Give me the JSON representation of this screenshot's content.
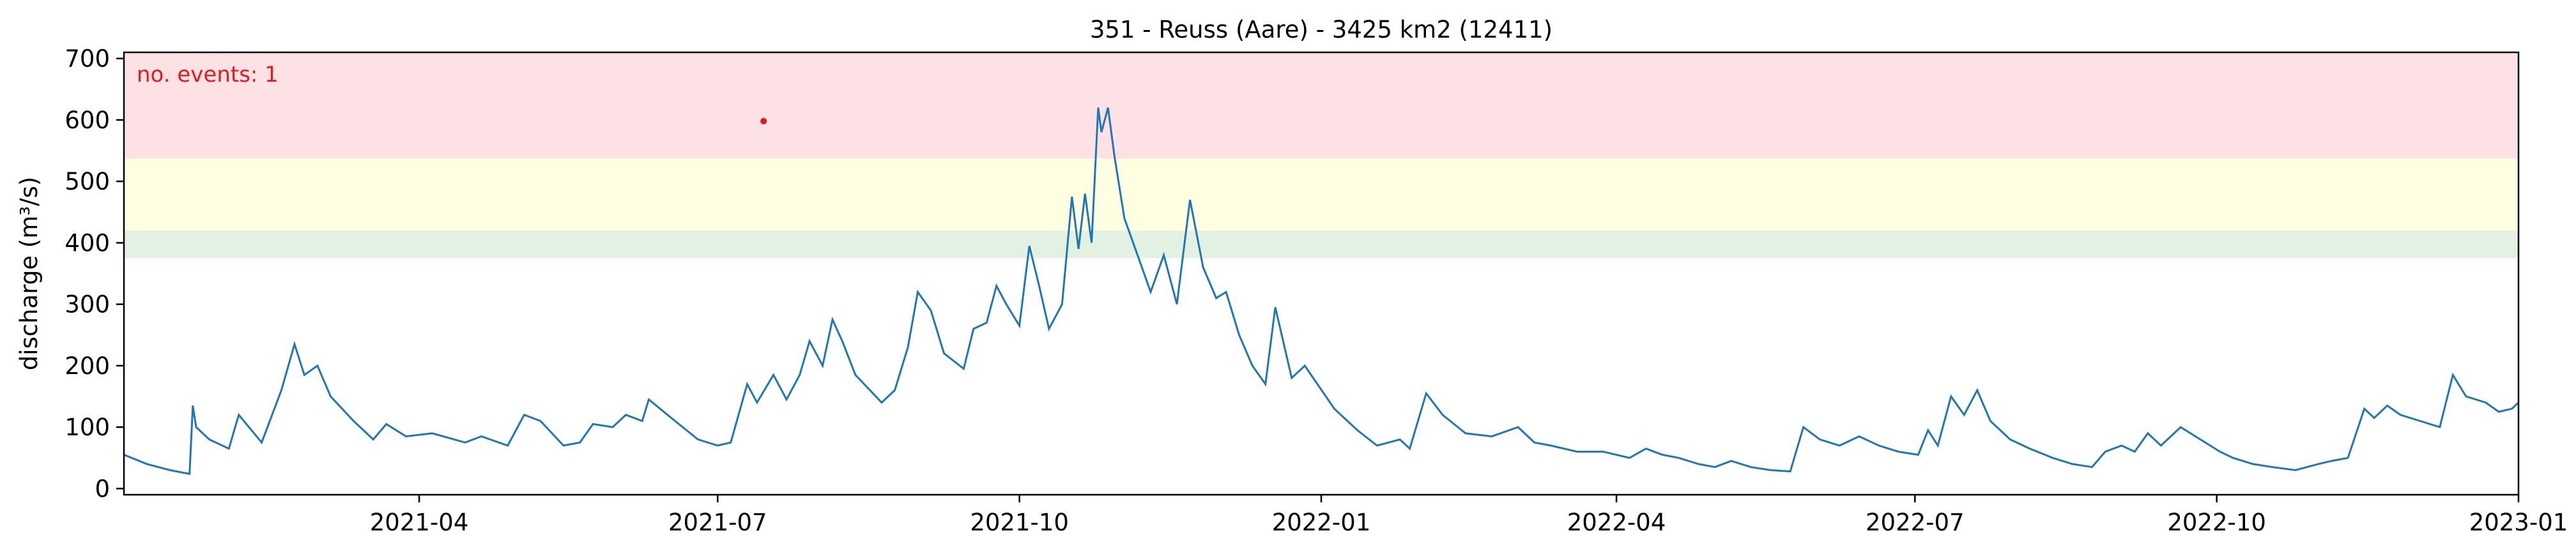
{
  "chart_data": {
    "type": "line",
    "title": "351 - Reuss (Aare) - 3425 km2 (12411)",
    "xlabel": "",
    "ylabel": "discharge (m³/s)",
    "xlim": [
      "2021-01-01",
      "2023-01-01"
    ],
    "ylim": [
      -10,
      710
    ],
    "x_ticks": [
      "2021-04",
      "2021-07",
      "2021-10",
      "2022-01",
      "2022-04",
      "2022-07",
      "2022-10",
      "2023-01"
    ],
    "x_tick_dates": [
      "2021-04-01",
      "2021-07-01",
      "2021-10-01",
      "2022-01-01",
      "2022-04-01",
      "2022-07-01",
      "2022-10-01",
      "2023-01-01"
    ],
    "y_ticks": [
      0,
      100,
      200,
      300,
      400,
      500,
      600,
      700
    ],
    "y_tick_labels": [
      "0",
      "100",
      "200",
      "300",
      "400",
      "500",
      "600",
      "700"
    ],
    "threshold_bands": [
      {
        "from": 375,
        "to": 420,
        "color": "#e3f1e3"
      },
      {
        "from": 537,
        "to": 710,
        "color": "#fde1e4"
      },
      {
        "from": 420,
        "to": 537,
        "color": "#fefee1"
      }
    ],
    "annotation": "no. events: 1",
    "annotation_color": "#e41a1c",
    "event_points": [
      {
        "x": "2021-07-15",
        "y": 598
      }
    ],
    "series": [
      {
        "name": "discharge",
        "color": "#1f77b4",
        "points": [
          [
            "2021-01-01",
            55
          ],
          [
            "2021-01-08",
            40
          ],
          [
            "2021-01-15",
            30
          ],
          [
            "2021-01-21",
            24
          ],
          [
            "2021-01-22",
            135
          ],
          [
            "2021-01-23",
            100
          ],
          [
            "2021-01-27",
            80
          ],
          [
            "2021-02-02",
            65
          ],
          [
            "2021-02-05",
            120
          ],
          [
            "2021-02-12",
            75
          ],
          [
            "2021-02-18",
            160
          ],
          [
            "2021-02-22",
            235
          ],
          [
            "2021-02-25",
            185
          ],
          [
            "2021-03-01",
            200
          ],
          [
            "2021-03-05",
            150
          ],
          [
            "2021-03-12",
            110
          ],
          [
            "2021-03-18",
            80
          ],
          [
            "2021-03-22",
            105
          ],
          [
            "2021-03-28",
            85
          ],
          [
            "2021-04-05",
            90
          ],
          [
            "2021-04-15",
            75
          ],
          [
            "2021-04-20",
            85
          ],
          [
            "2021-04-28",
            70
          ],
          [
            "2021-05-03",
            120
          ],
          [
            "2021-05-08",
            110
          ],
          [
            "2021-05-15",
            70
          ],
          [
            "2021-05-20",
            75
          ],
          [
            "2021-05-24",
            105
          ],
          [
            "2021-05-30",
            100
          ],
          [
            "2021-06-03",
            120
          ],
          [
            "2021-06-08",
            110
          ],
          [
            "2021-06-10",
            145
          ],
          [
            "2021-06-18",
            110
          ],
          [
            "2021-06-25",
            80
          ],
          [
            "2021-07-01",
            70
          ],
          [
            "2021-07-05",
            75
          ],
          [
            "2021-07-10",
            170
          ],
          [
            "2021-07-13",
            140
          ],
          [
            "2021-07-18",
            185
          ],
          [
            "2021-07-22",
            145
          ],
          [
            "2021-07-26",
            185
          ],
          [
            "2021-07-29",
            240
          ],
          [
            "2021-08-02",
            200
          ],
          [
            "2021-08-05",
            275
          ],
          [
            "2021-08-08",
            240
          ],
          [
            "2021-08-12",
            185
          ],
          [
            "2021-08-20",
            140
          ],
          [
            "2021-08-24",
            160
          ],
          [
            "2021-08-28",
            230
          ],
          [
            "2021-08-31",
            320
          ],
          [
            "2021-09-04",
            290
          ],
          [
            "2021-09-08",
            220
          ],
          [
            "2021-09-14",
            195
          ],
          [
            "2021-09-17",
            260
          ],
          [
            "2021-09-21",
            270
          ],
          [
            "2021-09-24",
            330
          ],
          [
            "2021-09-27",
            300
          ],
          [
            "2021-10-01",
            265
          ],
          [
            "2021-10-04",
            395
          ],
          [
            "2021-10-07",
            330
          ],
          [
            "2021-10-10",
            260
          ],
          [
            "2021-10-14",
            300
          ],
          [
            "2021-10-17",
            475
          ],
          [
            "2021-10-19",
            390
          ],
          [
            "2021-10-21",
            480
          ],
          [
            "2021-10-23",
            400
          ],
          [
            "2021-10-25",
            620
          ],
          [
            "2021-10-26",
            580
          ],
          [
            "2021-10-28",
            620
          ],
          [
            "2021-10-30",
            540
          ],
          [
            "2021-11-02",
            440
          ],
          [
            "2021-11-06",
            380
          ],
          [
            "2021-11-10",
            320
          ],
          [
            "2021-11-14",
            380
          ],
          [
            "2021-11-18",
            300
          ],
          [
            "2021-11-22",
            470
          ],
          [
            "2021-11-26",
            360
          ],
          [
            "2021-11-30",
            310
          ],
          [
            "2021-12-03",
            320
          ],
          [
            "2021-12-07",
            250
          ],
          [
            "2021-12-11",
            200
          ],
          [
            "2021-12-15",
            170
          ],
          [
            "2021-12-18",
            295
          ],
          [
            "2021-12-23",
            180
          ],
          [
            "2021-12-27",
            200
          ],
          [
            "2022-01-05",
            130
          ],
          [
            "2022-01-12",
            95
          ],
          [
            "2022-01-18",
            70
          ],
          [
            "2022-01-25",
            80
          ],
          [
            "2022-01-28",
            65
          ],
          [
            "2022-02-02",
            155
          ],
          [
            "2022-02-07",
            120
          ],
          [
            "2022-02-14",
            90
          ],
          [
            "2022-02-22",
            85
          ],
          [
            "2022-03-02",
            100
          ],
          [
            "2022-03-07",
            75
          ],
          [
            "2022-03-12",
            70
          ],
          [
            "2022-03-20",
            60
          ],
          [
            "2022-03-28",
            60
          ],
          [
            "2022-04-05",
            50
          ],
          [
            "2022-04-10",
            65
          ],
          [
            "2022-04-15",
            55
          ],
          [
            "2022-04-20",
            50
          ],
          [
            "2022-04-26",
            40
          ],
          [
            "2022-05-01",
            35
          ],
          [
            "2022-05-06",
            45
          ],
          [
            "2022-05-12",
            35
          ],
          [
            "2022-05-18",
            30
          ],
          [
            "2022-05-24",
            28
          ],
          [
            "2022-05-28",
            100
          ],
          [
            "2022-06-02",
            80
          ],
          [
            "2022-06-08",
            70
          ],
          [
            "2022-06-14",
            85
          ],
          [
            "2022-06-20",
            70
          ],
          [
            "2022-06-26",
            60
          ],
          [
            "2022-07-02",
            55
          ],
          [
            "2022-07-05",
            95
          ],
          [
            "2022-07-08",
            70
          ],
          [
            "2022-07-12",
            150
          ],
          [
            "2022-07-16",
            120
          ],
          [
            "2022-07-20",
            160
          ],
          [
            "2022-07-24",
            110
          ],
          [
            "2022-07-30",
            80
          ],
          [
            "2022-08-05",
            65
          ],
          [
            "2022-08-12",
            50
          ],
          [
            "2022-08-18",
            40
          ],
          [
            "2022-08-24",
            35
          ],
          [
            "2022-08-28",
            60
          ],
          [
            "2022-09-02",
            70
          ],
          [
            "2022-09-06",
            60
          ],
          [
            "2022-09-10",
            90
          ],
          [
            "2022-09-14",
            70
          ],
          [
            "2022-09-20",
            100
          ],
          [
            "2022-09-26",
            80
          ],
          [
            "2022-10-02",
            60
          ],
          [
            "2022-10-06",
            50
          ],
          [
            "2022-10-12",
            40
          ],
          [
            "2022-10-18",
            35
          ],
          [
            "2022-10-25",
            30
          ],
          [
            "2022-11-01",
            40
          ],
          [
            "2022-11-05",
            45
          ],
          [
            "2022-11-10",
            50
          ],
          [
            "2022-11-15",
            130
          ],
          [
            "2022-11-18",
            115
          ],
          [
            "2022-11-22",
            135
          ],
          [
            "2022-11-26",
            120
          ],
          [
            "2022-12-02",
            110
          ],
          [
            "2022-12-08",
            100
          ],
          [
            "2022-12-12",
            185
          ],
          [
            "2022-12-16",
            150
          ],
          [
            "2022-12-22",
            140
          ],
          [
            "2022-12-26",
            125
          ],
          [
            "2022-12-30",
            130
          ],
          [
            "2023-01-01",
            140
          ]
        ]
      }
    ]
  }
}
